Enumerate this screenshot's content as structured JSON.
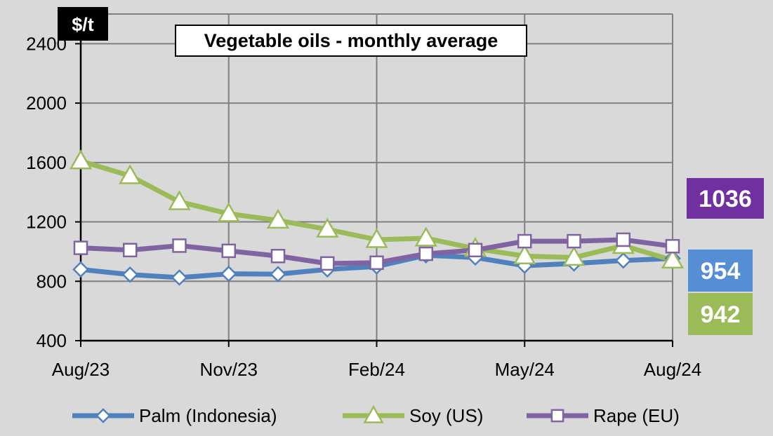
{
  "chart_data": {
    "type": "line",
    "title": "Vegetable oils - monthly average",
    "unit_label": "$/t",
    "ylim": [
      400,
      2600
    ],
    "yticks": [
      400,
      800,
      1200,
      1600,
      2000,
      2400
    ],
    "x": [
      "Aug/23",
      "Sep/23",
      "Oct/23",
      "Nov/23",
      "Dec/23",
      "Jan/24",
      "Feb/24",
      "Mar/24",
      "Apr/24",
      "May/24",
      "Jun/24",
      "Jul/24",
      "Aug/24"
    ],
    "xtick_labels": [
      "Aug/23",
      "Nov/23",
      "Feb/24",
      "May/24",
      "Aug/24"
    ],
    "grid": true,
    "legend_position": "bottom",
    "series": [
      {
        "name": "Palm (Indonesia)",
        "color": "#4f81bd",
        "marker": "diamond",
        "values": [
          880,
          845,
          825,
          850,
          848,
          880,
          900,
          975,
          960,
          905,
          920,
          940,
          954
        ]
      },
      {
        "name": "Soy (US)",
        "color": "#9bbb59",
        "marker": "triangle",
        "values": [
          1610,
          1510,
          1335,
          1255,
          1210,
          1150,
          1080,
          1090,
          1020,
          970,
          960,
          1040,
          942
        ]
      },
      {
        "name": "Rape (EU)",
        "color": "#8064a2",
        "marker": "square",
        "values": [
          1025,
          1010,
          1040,
          1005,
          970,
          920,
          925,
          985,
          1010,
          1070,
          1070,
          1080,
          1036
        ]
      }
    ],
    "end_labels": [
      {
        "series": "Rape (EU)",
        "text": "1036",
        "color": "#7030a0"
      },
      {
        "series": "Palm (Indonesia)",
        "text": "954",
        "color": "#558ed5"
      },
      {
        "series": "Soy (US)",
        "text": "942",
        "color": "#9bbb59"
      }
    ]
  }
}
